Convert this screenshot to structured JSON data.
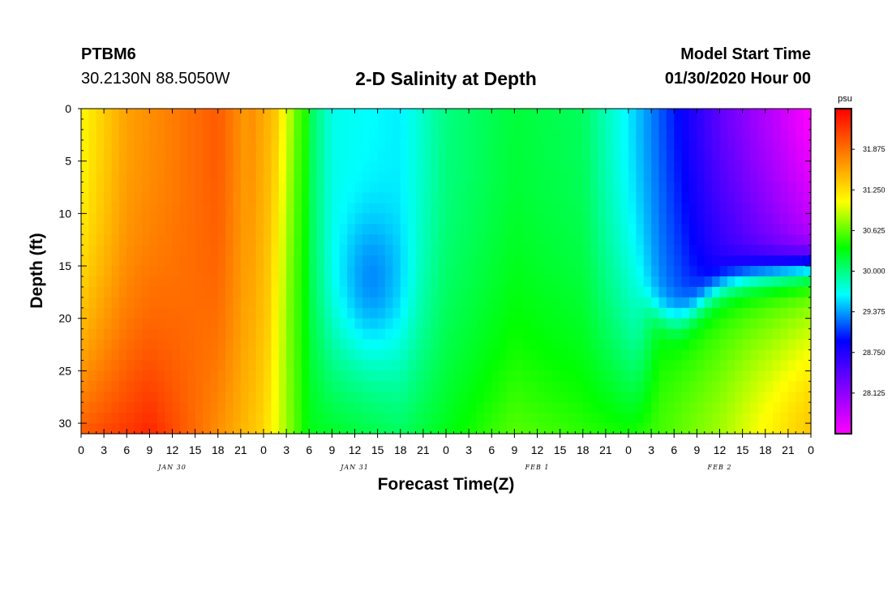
{
  "header": {
    "station": "PTBM6",
    "coordinates": "30.2130N 88.5050W",
    "title": "2-D Salinity at Depth",
    "model_start_label": "Model Start Time",
    "model_start_value": "01/30/2020 Hour 00"
  },
  "chart_data": {
    "type": "heatmap",
    "title": "2-D Salinity at Depth",
    "xlabel": "Forecast Time(Z)",
    "ylabel": "Depth (ft)",
    "x_tick_labels": [
      "0",
      "3",
      "6",
      "9",
      "12",
      "15",
      "18",
      "21",
      "0",
      "3",
      "6",
      "9",
      "12",
      "15",
      "18",
      "21",
      "0",
      "3",
      "6",
      "9",
      "12",
      "15",
      "18",
      "21",
      "0",
      "3",
      "6",
      "9",
      "12",
      "15",
      "18",
      "21",
      "0"
    ],
    "x_range_hours": [
      0,
      96
    ],
    "day_labels": [
      {
        "label": "JAN 30",
        "hour": 12
      },
      {
        "label": "JAN 31",
        "hour": 36
      },
      {
        "label": "FEB 1",
        "hour": 60
      },
      {
        "label": "FEB 2",
        "hour": 84
      }
    ],
    "y_ticks": [
      0,
      5,
      10,
      15,
      20,
      25,
      30
    ],
    "y_range": [
      0,
      31
    ],
    "y_inverted": true,
    "colorbar": {
      "unit": "psu",
      "ticks": [
        31.875,
        31.25,
        30.625,
        30.0,
        29.375,
        28.75,
        28.125
      ],
      "range": [
        27.5,
        32.5
      ],
      "colors": [
        "#ff00ff",
        "#8000ff",
        "#0000ff",
        "#00ffff",
        "#00ff00",
        "#ffff00",
        "#ff8000",
        "#ff0000"
      ]
    },
    "value_description": "Salinity (psu) by forecast hour (x) and depth in ft (y)",
    "approx_surface_values": [
      {
        "hour": 0,
        "value": 31.1
      },
      {
        "hour": 6,
        "value": 31.6
      },
      {
        "hour": 18,
        "value": 32.0
      },
      {
        "hour": 24,
        "value": 31.4
      },
      {
        "hour": 27,
        "value": 30.6
      },
      {
        "hour": 33,
        "value": 29.7
      },
      {
        "hour": 42,
        "value": 29.6
      },
      {
        "hour": 48,
        "value": 30.0
      },
      {
        "hour": 57,
        "value": 30.2
      },
      {
        "hour": 66,
        "value": 30.1
      },
      {
        "hour": 72,
        "value": 29.6
      },
      {
        "hour": 84,
        "value": 28.4
      },
      {
        "hour": 96,
        "value": 27.5
      }
    ],
    "approx_bottom_values": [
      {
        "hour": 0,
        "value": 32.0
      },
      {
        "hour": 9,
        "value": 32.3
      },
      {
        "hour": 24,
        "value": 31.3
      },
      {
        "hour": 30,
        "value": 30.3
      },
      {
        "hour": 42,
        "value": 30.1
      },
      {
        "hour": 57,
        "value": 30.6
      },
      {
        "hour": 72,
        "value": 30.4
      },
      {
        "hour": 84,
        "value": 30.8
      },
      {
        "hour": 96,
        "value": 31.4
      }
    ]
  }
}
